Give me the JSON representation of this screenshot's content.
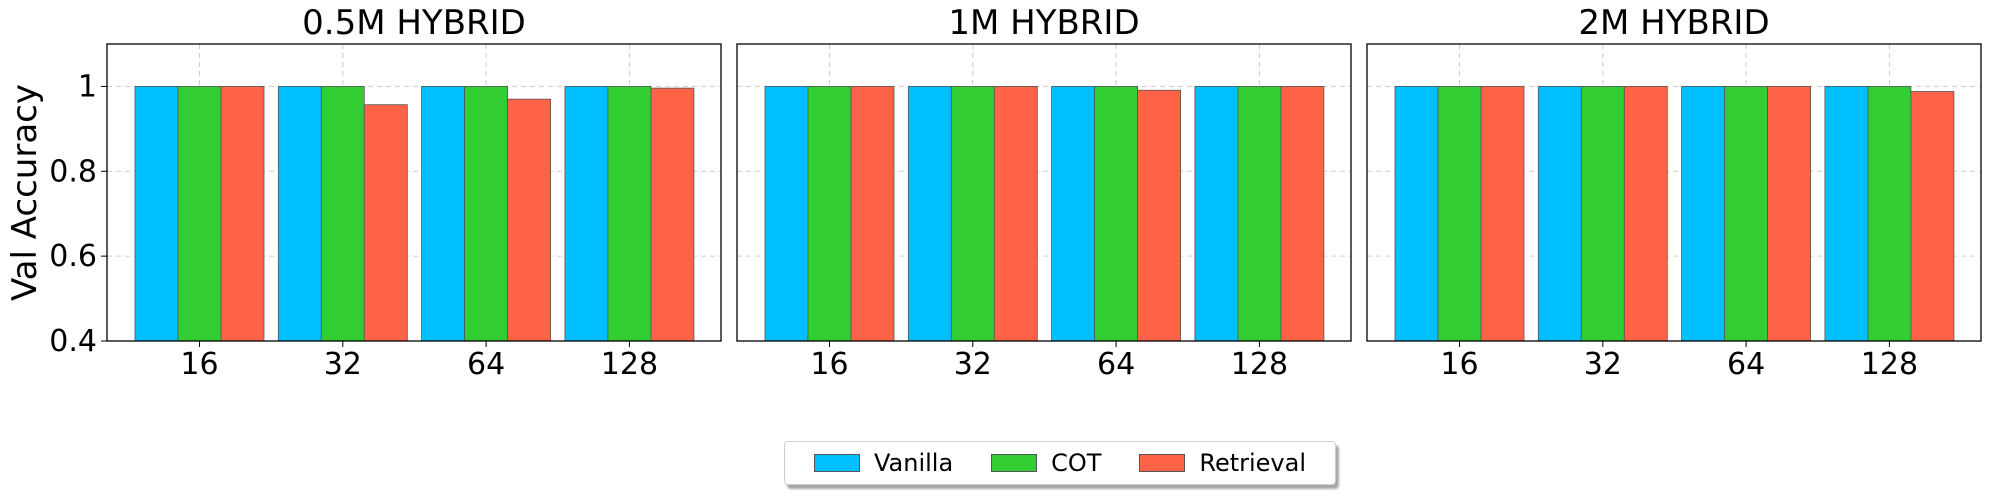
{
  "chart_data": {
    "type": "bar",
    "ylabel": "Val Accuracy",
    "ylim": [
      0.4,
      1.1
    ],
    "yticks": [
      0.4,
      0.6,
      0.8,
      1
    ],
    "ytick_labels": [
      "0.4",
      "0.6",
      "0.8",
      "1"
    ],
    "grid": true,
    "legend_placement": "bottom-center",
    "series_names": [
      "Vanilla",
      "COT",
      "Retrieval"
    ],
    "colors": {
      "Vanilla": "#00BFFF",
      "COT": "#32CD32",
      "Retrieval": "#FF6347"
    },
    "panels": [
      {
        "title": "0.5M HYBRID",
        "categories": [
          "16",
          "32",
          "64",
          "128"
        ],
        "series": [
          {
            "name": "Vanilla",
            "values": [
              1.0,
              1.0,
              1.0,
              1.0
            ]
          },
          {
            "name": "COT",
            "values": [
              1.0,
              1.0,
              1.0,
              1.0
            ]
          },
          {
            "name": "Retrieval",
            "values": [
              1.0,
              0.957,
              0.97,
              0.996
            ]
          }
        ]
      },
      {
        "title": "1M HYBRID",
        "categories": [
          "16",
          "32",
          "64",
          "128"
        ],
        "series": [
          {
            "name": "Vanilla",
            "values": [
              1.0,
              1.0,
              1.0,
              1.0
            ]
          },
          {
            "name": "COT",
            "values": [
              1.0,
              1.0,
              1.0,
              1.0
            ]
          },
          {
            "name": "Retrieval",
            "values": [
              1.0,
              1.0,
              0.991,
              1.0
            ]
          }
        ]
      },
      {
        "title": "2M HYBRID",
        "categories": [
          "16",
          "32",
          "64",
          "128"
        ],
        "series": [
          {
            "name": "Vanilla",
            "values": [
              1.0,
              1.0,
              1.0,
              1.0
            ]
          },
          {
            "name": "COT",
            "values": [
              1.0,
              1.0,
              1.0,
              1.0
            ]
          },
          {
            "name": "Retrieval",
            "values": [
              1.0,
              1.0,
              1.0,
              0.988
            ]
          }
        ]
      }
    ]
  }
}
